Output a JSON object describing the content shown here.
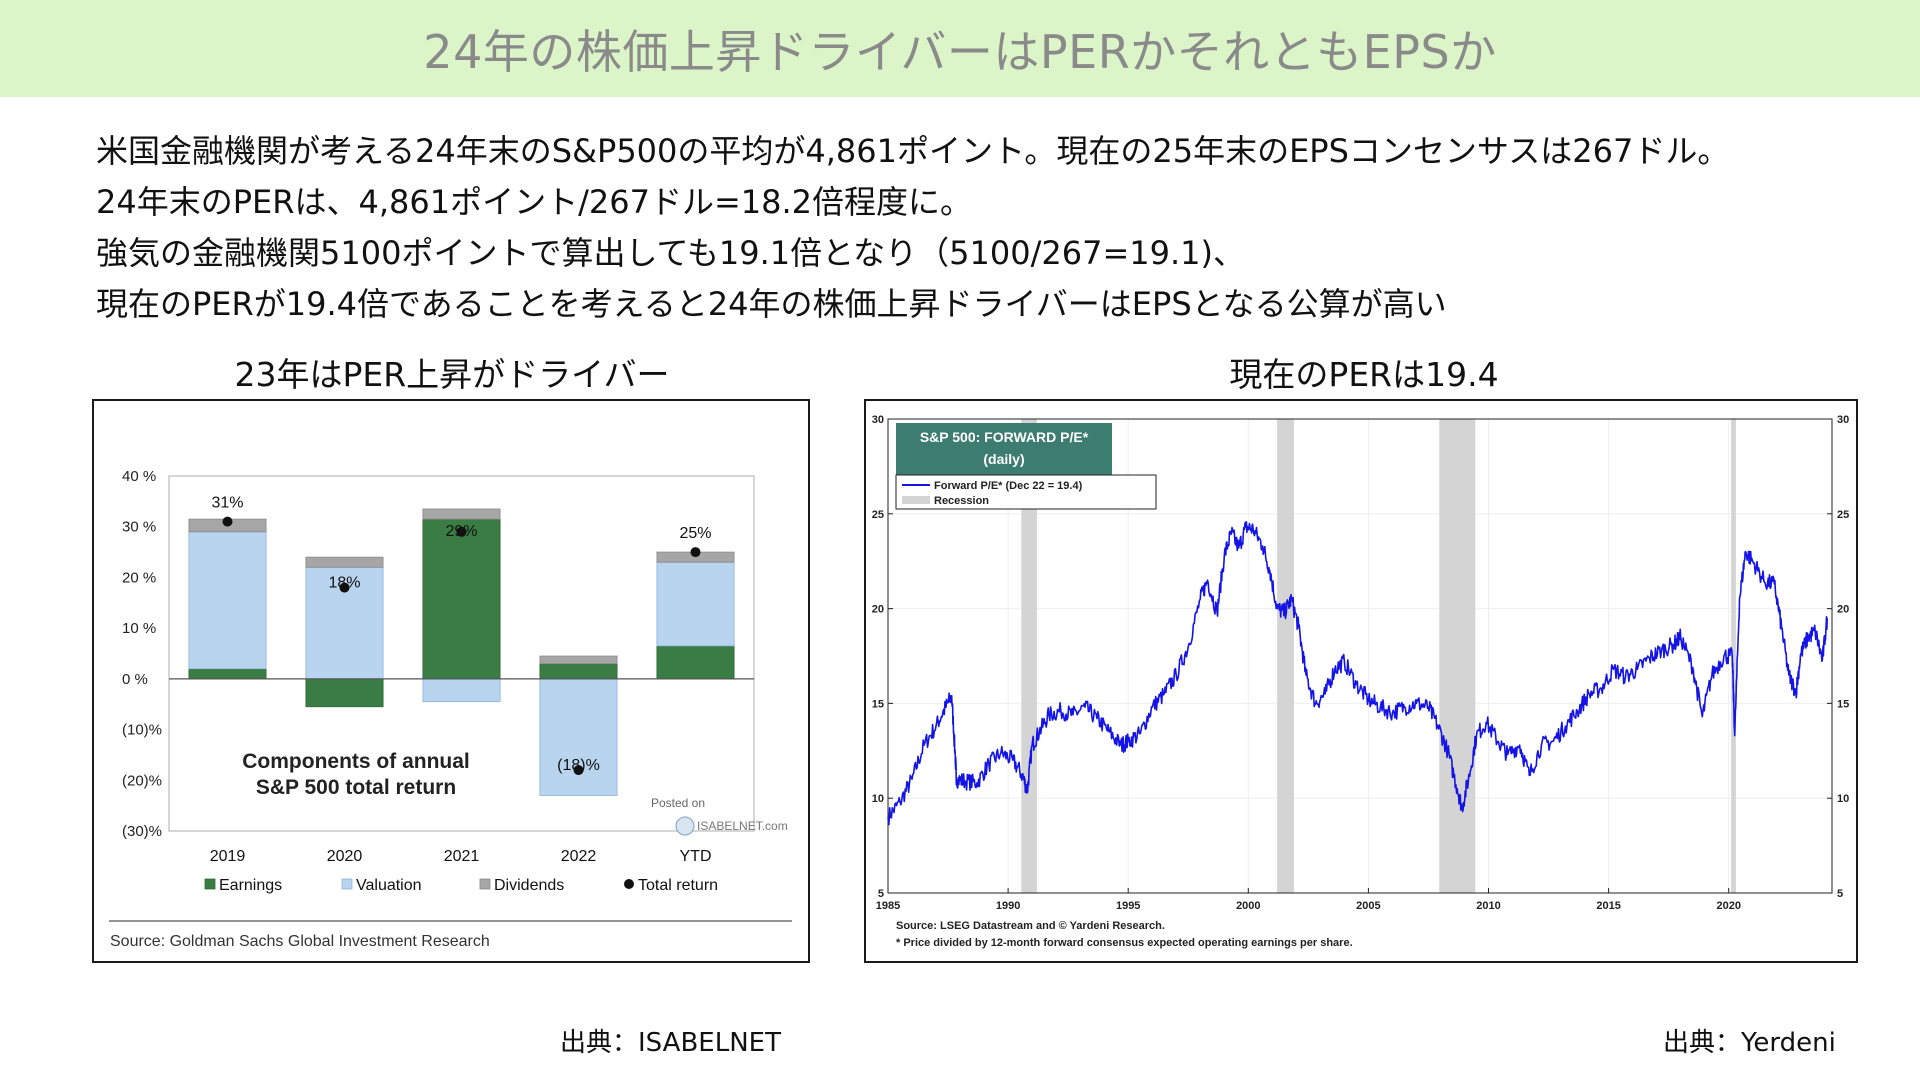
{
  "title": "24年の株価上昇ドライバーはPERかそれともEPSか",
  "intro_lines": [
    "米国金融機関が考える24年末のS&P500の平均が4,861ポイント。現在の25年末のEPSコンセンサスは267ドル。",
    "24年末のPERは、4,861ポイント/267ドル=18.2倍程度に。",
    "強気の金融機関5100ポイントで算出しても19.1倍となり（5100/267=19.1)、",
    "現在のPERが19.4倍であることを考えると24年の株価上昇ドライバーはEPSとなる公算が高い"
  ],
  "left_heading": "23年はPER上昇がドライバー",
  "right_heading": "現在のPERは19.4",
  "left_credit": "出典：ISABELNET",
  "right_credit": "出典：Yerdeni",
  "colors": {
    "earnings": "#3a7d44",
    "valuation": "#b8d4ee",
    "dividends": "#a6a6a6",
    "line": "#1414e6",
    "recession": "#d4d4d4",
    "header_box": "#3d7d70"
  },
  "chart_data": [
    {
      "type": "bar",
      "stacked": true,
      "title": "Components of annual\nS&P 500 total return",
      "title_lines": [
        "Components of annual",
        "S&P 500 total return"
      ],
      "categories": [
        "2019",
        "2020",
        "2021",
        "2022",
        "YTD"
      ],
      "series": [
        {
          "name": "Earnings",
          "values": [
            2,
            -5.5,
            31.5,
            3,
            6.5
          ]
        },
        {
          "name": "Valuation",
          "values": [
            27,
            22,
            -4.5,
            -23,
            16.5
          ]
        },
        {
          "name": "Dividends",
          "values": [
            2.5,
            2,
            2,
            1.5,
            2
          ]
        }
      ],
      "total_return": {
        "name": "Total return",
        "values": [
          31,
          18,
          29,
          -18,
          25
        ],
        "labels": [
          "31%",
          "18%",
          "29%",
          "(18)%",
          "25%"
        ]
      },
      "ylim": [
        -30,
        40
      ],
      "ytick_values": [
        40,
        30,
        20,
        10,
        0,
        -10,
        -20,
        -30
      ],
      "ytick_labels": [
        "40 %",
        "30 %",
        "20 %",
        "10 %",
        "0 %",
        "(10)%",
        "(20)%",
        "(30)%"
      ],
      "legend": [
        "Earnings",
        "Valuation",
        "Dividends",
        "Total return"
      ],
      "posted_on": "Posted on",
      "watermark": "ISABELNET.com",
      "source": "Source: Goldman Sachs Global Investment Research"
    },
    {
      "type": "line",
      "title": "S&P 500: FORWARD P/E*",
      "subtitle": "(daily)",
      "legend": [
        "Forward P/E* (Dec 22 = 19.4)",
        "Recession"
      ],
      "xlim": [
        1985,
        2024.3
      ],
      "ylim": [
        5,
        30
      ],
      "xtick_labels": [
        "1985",
        "1990",
        "1995",
        "2000",
        "2005",
        "2010",
        "2015",
        "2020"
      ],
      "xticks": [
        1985,
        1990,
        1995,
        2000,
        2005,
        2010,
        2015,
        2020
      ],
      "ytick_labels": [
        "5",
        "10",
        "15",
        "20",
        "25",
        "30"
      ],
      "yticks": [
        5,
        10,
        15,
        20,
        25,
        30
      ],
      "recessions": [
        [
          1990.55,
          1991.2
        ],
        [
          2001.2,
          2001.9
        ],
        [
          2007.95,
          2009.45
        ],
        [
          2020.1,
          2020.3
        ]
      ],
      "series": [
        {
          "name": "Forward P/E*",
          "x": [
            1985.0,
            1985.5,
            1986.0,
            1986.5,
            1987.0,
            1987.4,
            1987.65,
            1987.8,
            1987.85,
            1988.2,
            1988.7,
            1989.2,
            1989.7,
            1990.2,
            1990.6,
            1990.8,
            1991.0,
            1991.3,
            1991.7,
            1992.2,
            1992.7,
            1993.2,
            1993.7,
            1994.2,
            1994.7,
            1995.0,
            1995.5,
            1996.0,
            1996.5,
            1997.0,
            1997.5,
            1998.0,
            1998.3,
            1998.7,
            1999.0,
            1999.3,
            1999.6,
            1999.9,
            2000.2,
            2000.6,
            2000.9,
            2001.2,
            2001.5,
            2001.8,
            2002.1,
            2002.4,
            2002.8,
            2003.2,
            2003.6,
            2004.0,
            2004.5,
            2005.0,
            2005.5,
            2006.0,
            2006.5,
            2007.0,
            2007.5,
            2007.9,
            2008.3,
            2008.7,
            2008.9,
            2009.2,
            2009.5,
            2009.9,
            2010.4,
            2010.8,
            2011.3,
            2011.7,
            2012.2,
            2012.7,
            2013.2,
            2013.7,
            2014.2,
            2014.7,
            2015.2,
            2015.7,
            2016.2,
            2016.7,
            2017.2,
            2017.7,
            2018.0,
            2018.5,
            2018.9,
            2019.3,
            2019.8,
            2020.15,
            2020.25,
            2020.45,
            2020.7,
            2021.0,
            2021.5,
            2021.9,
            2022.2,
            2022.5,
            2022.8,
            2023.0,
            2023.3,
            2023.6,
            2023.9,
            2024.1
          ],
          "y": [
            9.0,
            9.8,
            11.0,
            12.8,
            13.8,
            14.8,
            15.4,
            12.2,
            11.0,
            10.9,
            10.8,
            11.8,
            12.4,
            12.0,
            11.2,
            10.4,
            12.8,
            13.5,
            14.4,
            14.6,
            14.4,
            14.8,
            14.2,
            13.5,
            12.8,
            13.0,
            13.4,
            14.8,
            15.5,
            16.5,
            18.0,
            20.5,
            21.5,
            19.8,
            22.8,
            24.0,
            23.2,
            24.3,
            24.2,
            23.3,
            22.0,
            20.0,
            19.8,
            20.5,
            19.0,
            16.5,
            15.0,
            15.5,
            16.8,
            17.2,
            16.0,
            15.2,
            14.8,
            14.5,
            14.8,
            15.0,
            14.8,
            13.8,
            12.5,
            10.5,
            9.5,
            11.2,
            13.3,
            14.0,
            13.0,
            12.3,
            12.8,
            11.2,
            12.8,
            13.0,
            13.8,
            14.6,
            15.5,
            15.8,
            16.8,
            16.4,
            16.8,
            17.4,
            17.8,
            18.1,
            18.5,
            16.9,
            14.3,
            16.5,
            17.5,
            17.5,
            13.3,
            20.5,
            23.0,
            22.5,
            21.4,
            21.3,
            19.0,
            16.5,
            15.6,
            17.6,
            18.5,
            18.8,
            17.3,
            19.5
          ]
        }
      ],
      "source_lines": [
        "Source: LSEG Datastream and © Yardeni Research.",
        "* Price divided by 12-month forward consensus expected operating earnings per share."
      ]
    }
  ]
}
